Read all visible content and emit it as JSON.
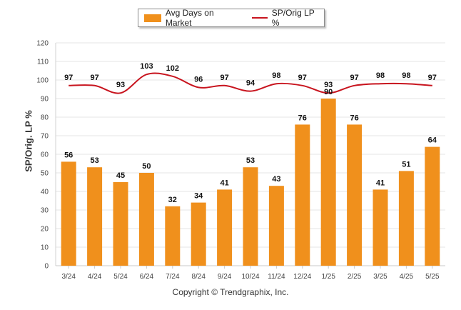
{
  "chart_data": {
    "type": "bar",
    "categories": [
      "3/24",
      "4/24",
      "5/24",
      "6/24",
      "7/24",
      "8/24",
      "9/24",
      "10/24",
      "11/24",
      "12/24",
      "1/25",
      "2/25",
      "3/25",
      "4/25",
      "5/25"
    ],
    "series": [
      {
        "name": "Avg Days on Market",
        "type": "bar",
        "color": "#f0901c",
        "values": [
          56,
          53,
          45,
          50,
          32,
          34,
          41,
          53,
          43,
          76,
          90,
          76,
          41,
          51,
          64
        ]
      },
      {
        "name": "SP/Orig LP %",
        "type": "line",
        "color": "#c8141e",
        "values": [
          97,
          97,
          93,
          103,
          102,
          96,
          97,
          94,
          98,
          97,
          93,
          97,
          98,
          98,
          97
        ]
      }
    ],
    "ylabel": "SP/Orig. LP %",
    "ylim": [
      0,
      120
    ],
    "yticks": [
      0,
      10,
      20,
      30,
      40,
      50,
      60,
      70,
      80,
      90,
      100,
      110,
      120
    ],
    "grid": true,
    "legend_position": "top"
  },
  "copyright": "Copyright © Trendgraphix, Inc."
}
